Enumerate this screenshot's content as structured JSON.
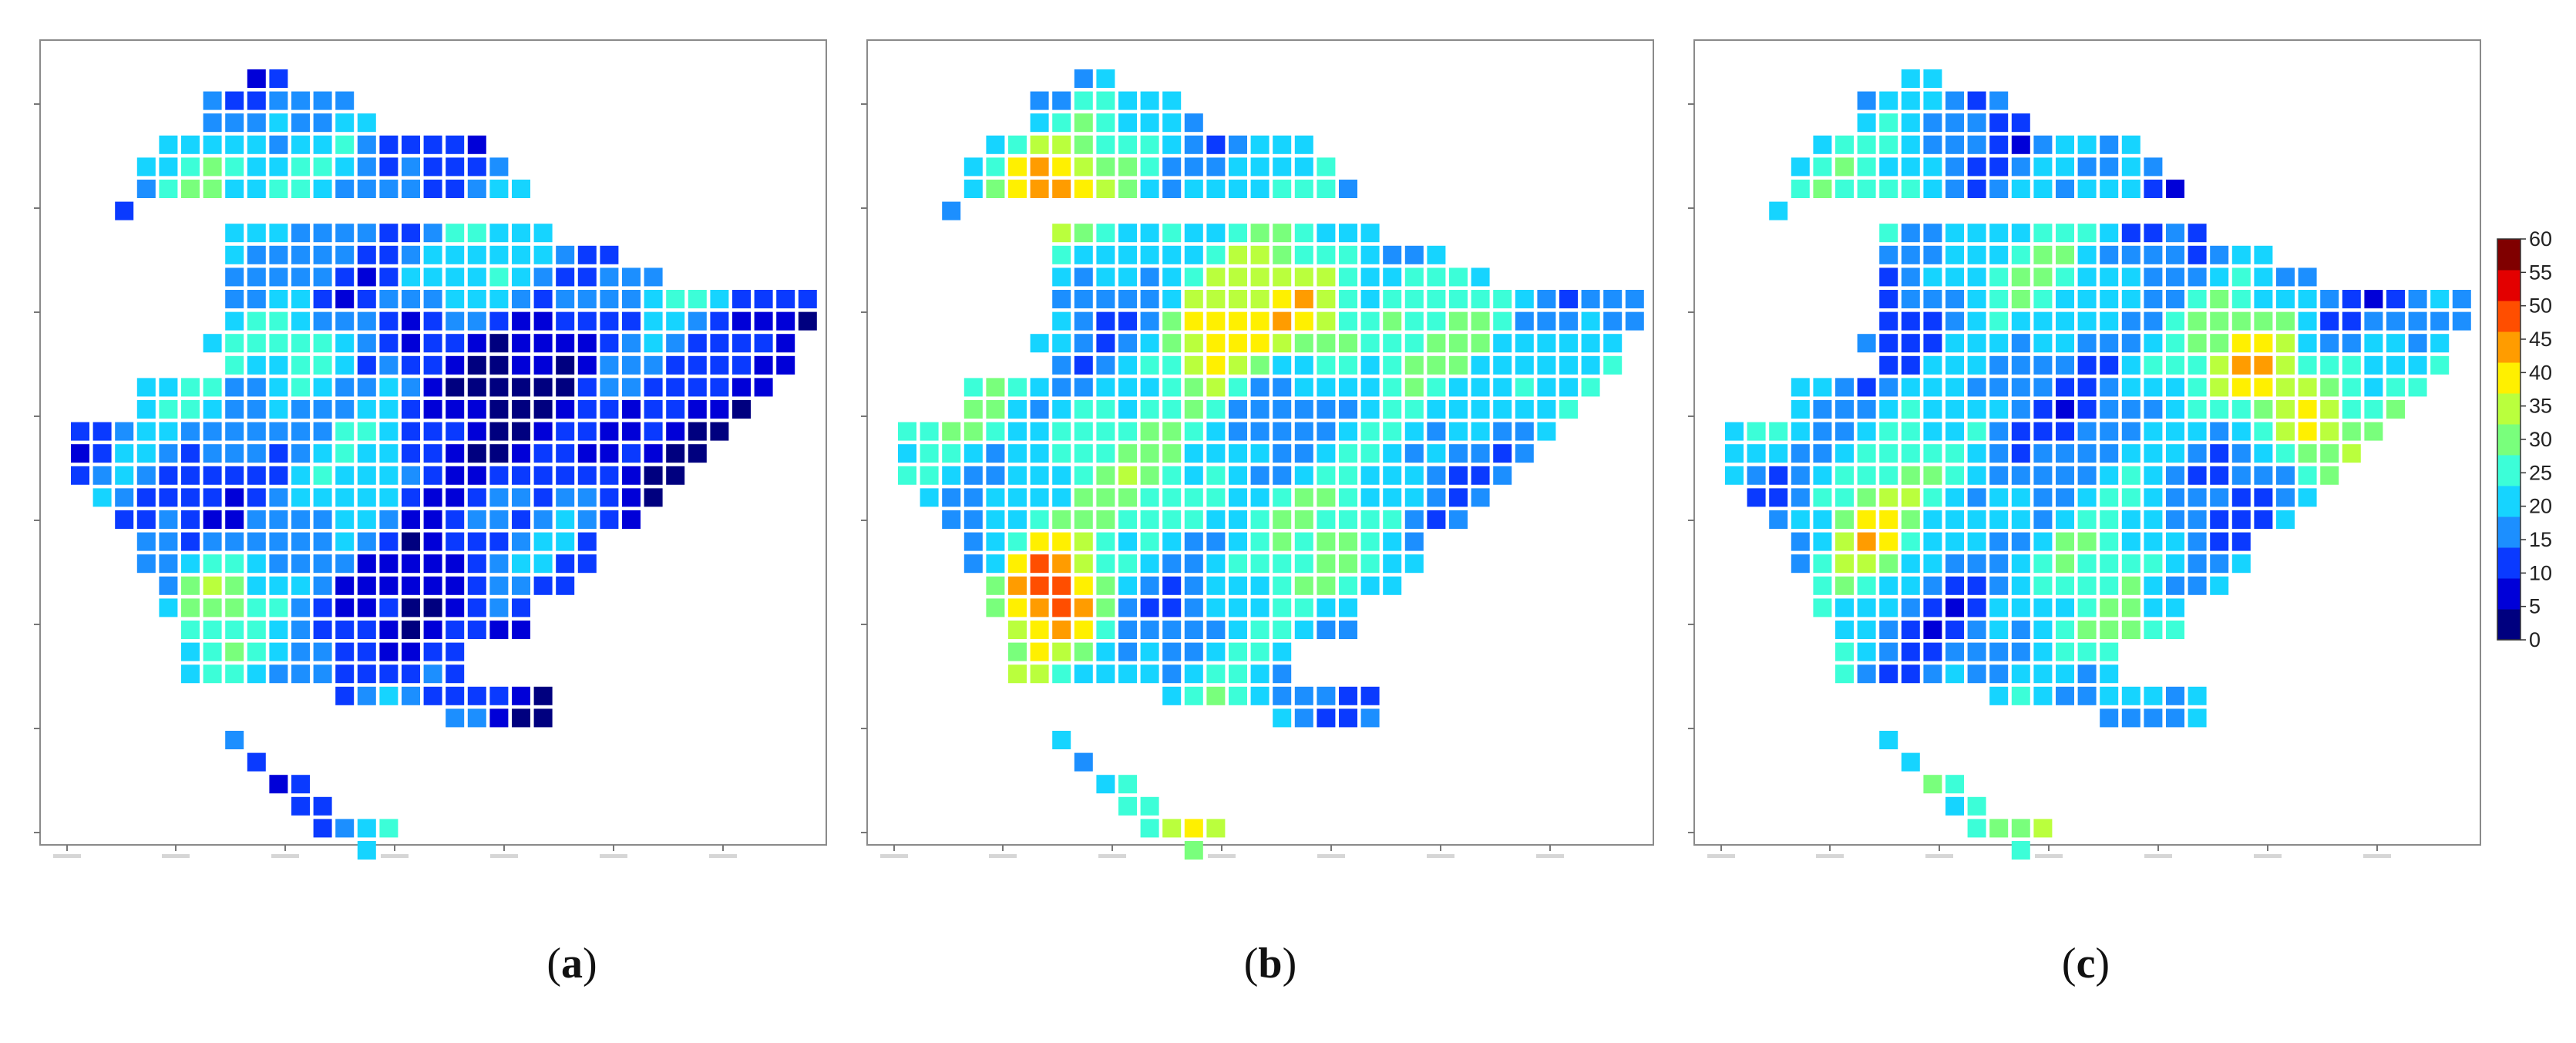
{
  "chart_data": [
    {
      "type": "heatmap",
      "panel_label": "a",
      "value_range": [
        0,
        60
      ]
    },
    {
      "type": "heatmap",
      "panel_label": "b",
      "value_range": [
        0,
        60
      ]
    },
    {
      "type": "heatmap",
      "panel_label": "c",
      "value_range": [
        0,
        60
      ]
    }
  ],
  "colorbar": {
    "ticks": [
      "0",
      "5",
      "10",
      "15",
      "20",
      "25",
      "30",
      "35",
      "40",
      "45",
      "50",
      "55",
      "60"
    ],
    "colors": [
      "#00007f",
      "#0000d8",
      "#0a3aff",
      "#1c8fff",
      "#16d4ff",
      "#3cfed8",
      "#79ff7c",
      "#baff3d",
      "#fff000",
      "#ff9c00",
      "#ff4e00",
      "#e30000",
      "#800000"
    ]
  },
  "captions": {
    "a": "a",
    "b": "b",
    "c": "c"
  }
}
